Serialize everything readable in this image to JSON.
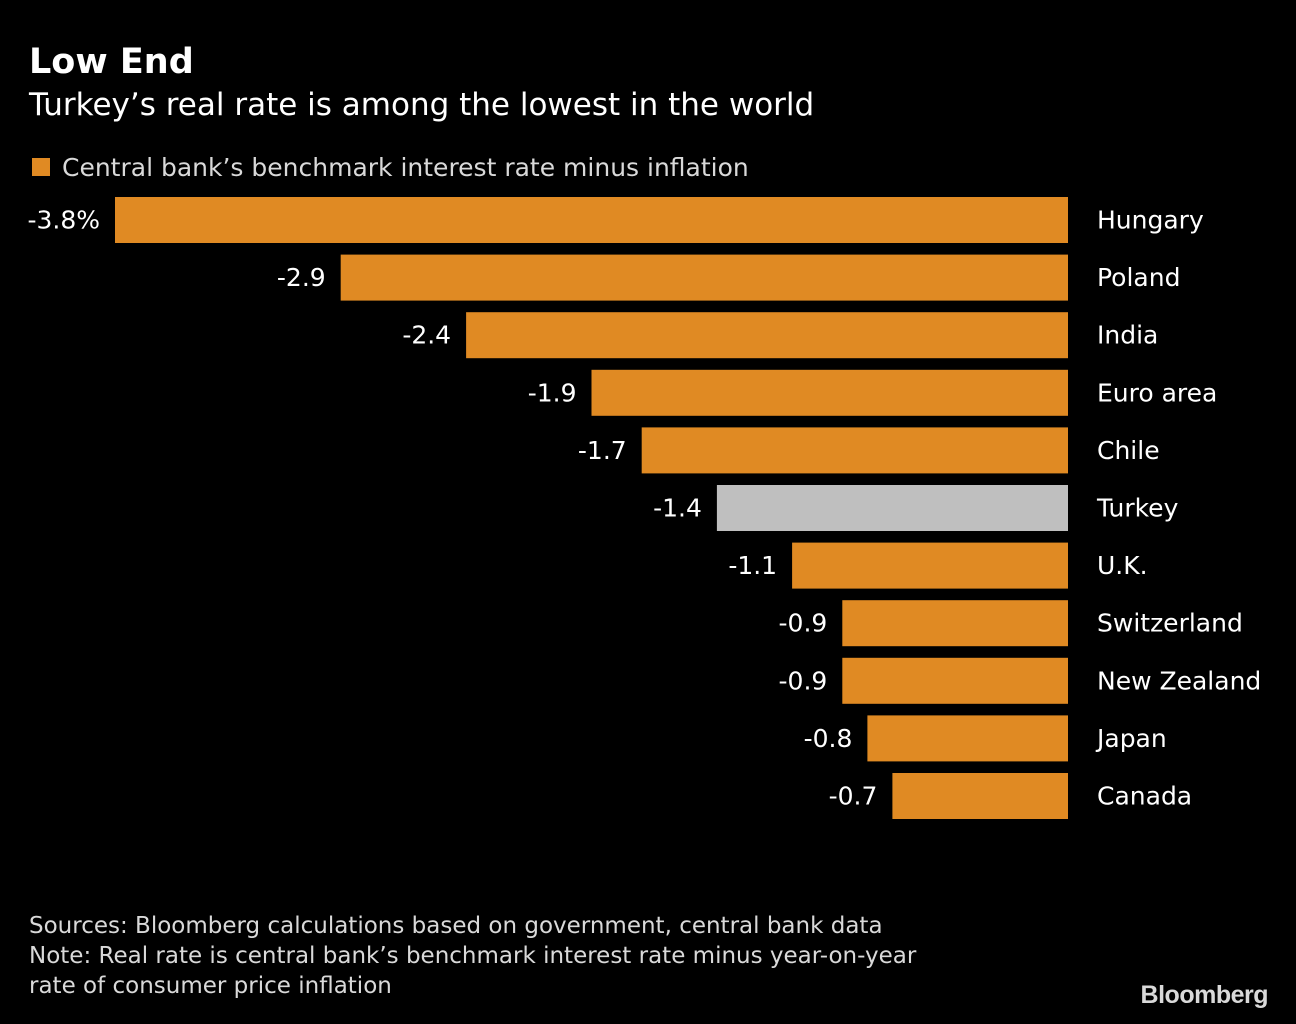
{
  "chart_data": {
    "type": "bar",
    "orientation": "horizontal",
    "title": "Low End",
    "subtitle": "Turkey’s real rate is among the lowest in the world",
    "legend": [
      "Central bank’s benchmark interest rate minus inflation"
    ],
    "categories": [
      "Hungary",
      "Poland",
      "India",
      "Euro area",
      "Chile",
      "Turkey",
      "U.K.",
      "Switzerland",
      "New Zealand",
      "Japan",
      "Canada"
    ],
    "values": [
      -3.8,
      -2.9,
      -2.4,
      -1.9,
      -1.7,
      -1.4,
      -1.1,
      -0.9,
      -0.9,
      -0.8,
      -0.7
    ],
    "value_labels": [
      "-3.8%",
      "-2.9",
      "-2.4",
      "-1.9",
      "-1.7",
      "-1.4",
      "-1.1",
      "-0.9",
      "-0.9",
      "-0.8",
      "-0.7"
    ],
    "highlight_category": "Turkey",
    "colors": {
      "bar": "#e08a23",
      "highlight": "#bfbfbf",
      "background": "#000000"
    },
    "xlim": [
      -3.8,
      0
    ],
    "grid": false,
    "legend_position": "top-left"
  },
  "footer": {
    "sources": "Sources: Bloomberg calculations based on government, central bank data",
    "note_line1": "Note: Real rate is central bank’s benchmark interest rate minus year-on-year",
    "note_line2": "rate of consumer price inflation"
  },
  "brand": "Bloomberg"
}
